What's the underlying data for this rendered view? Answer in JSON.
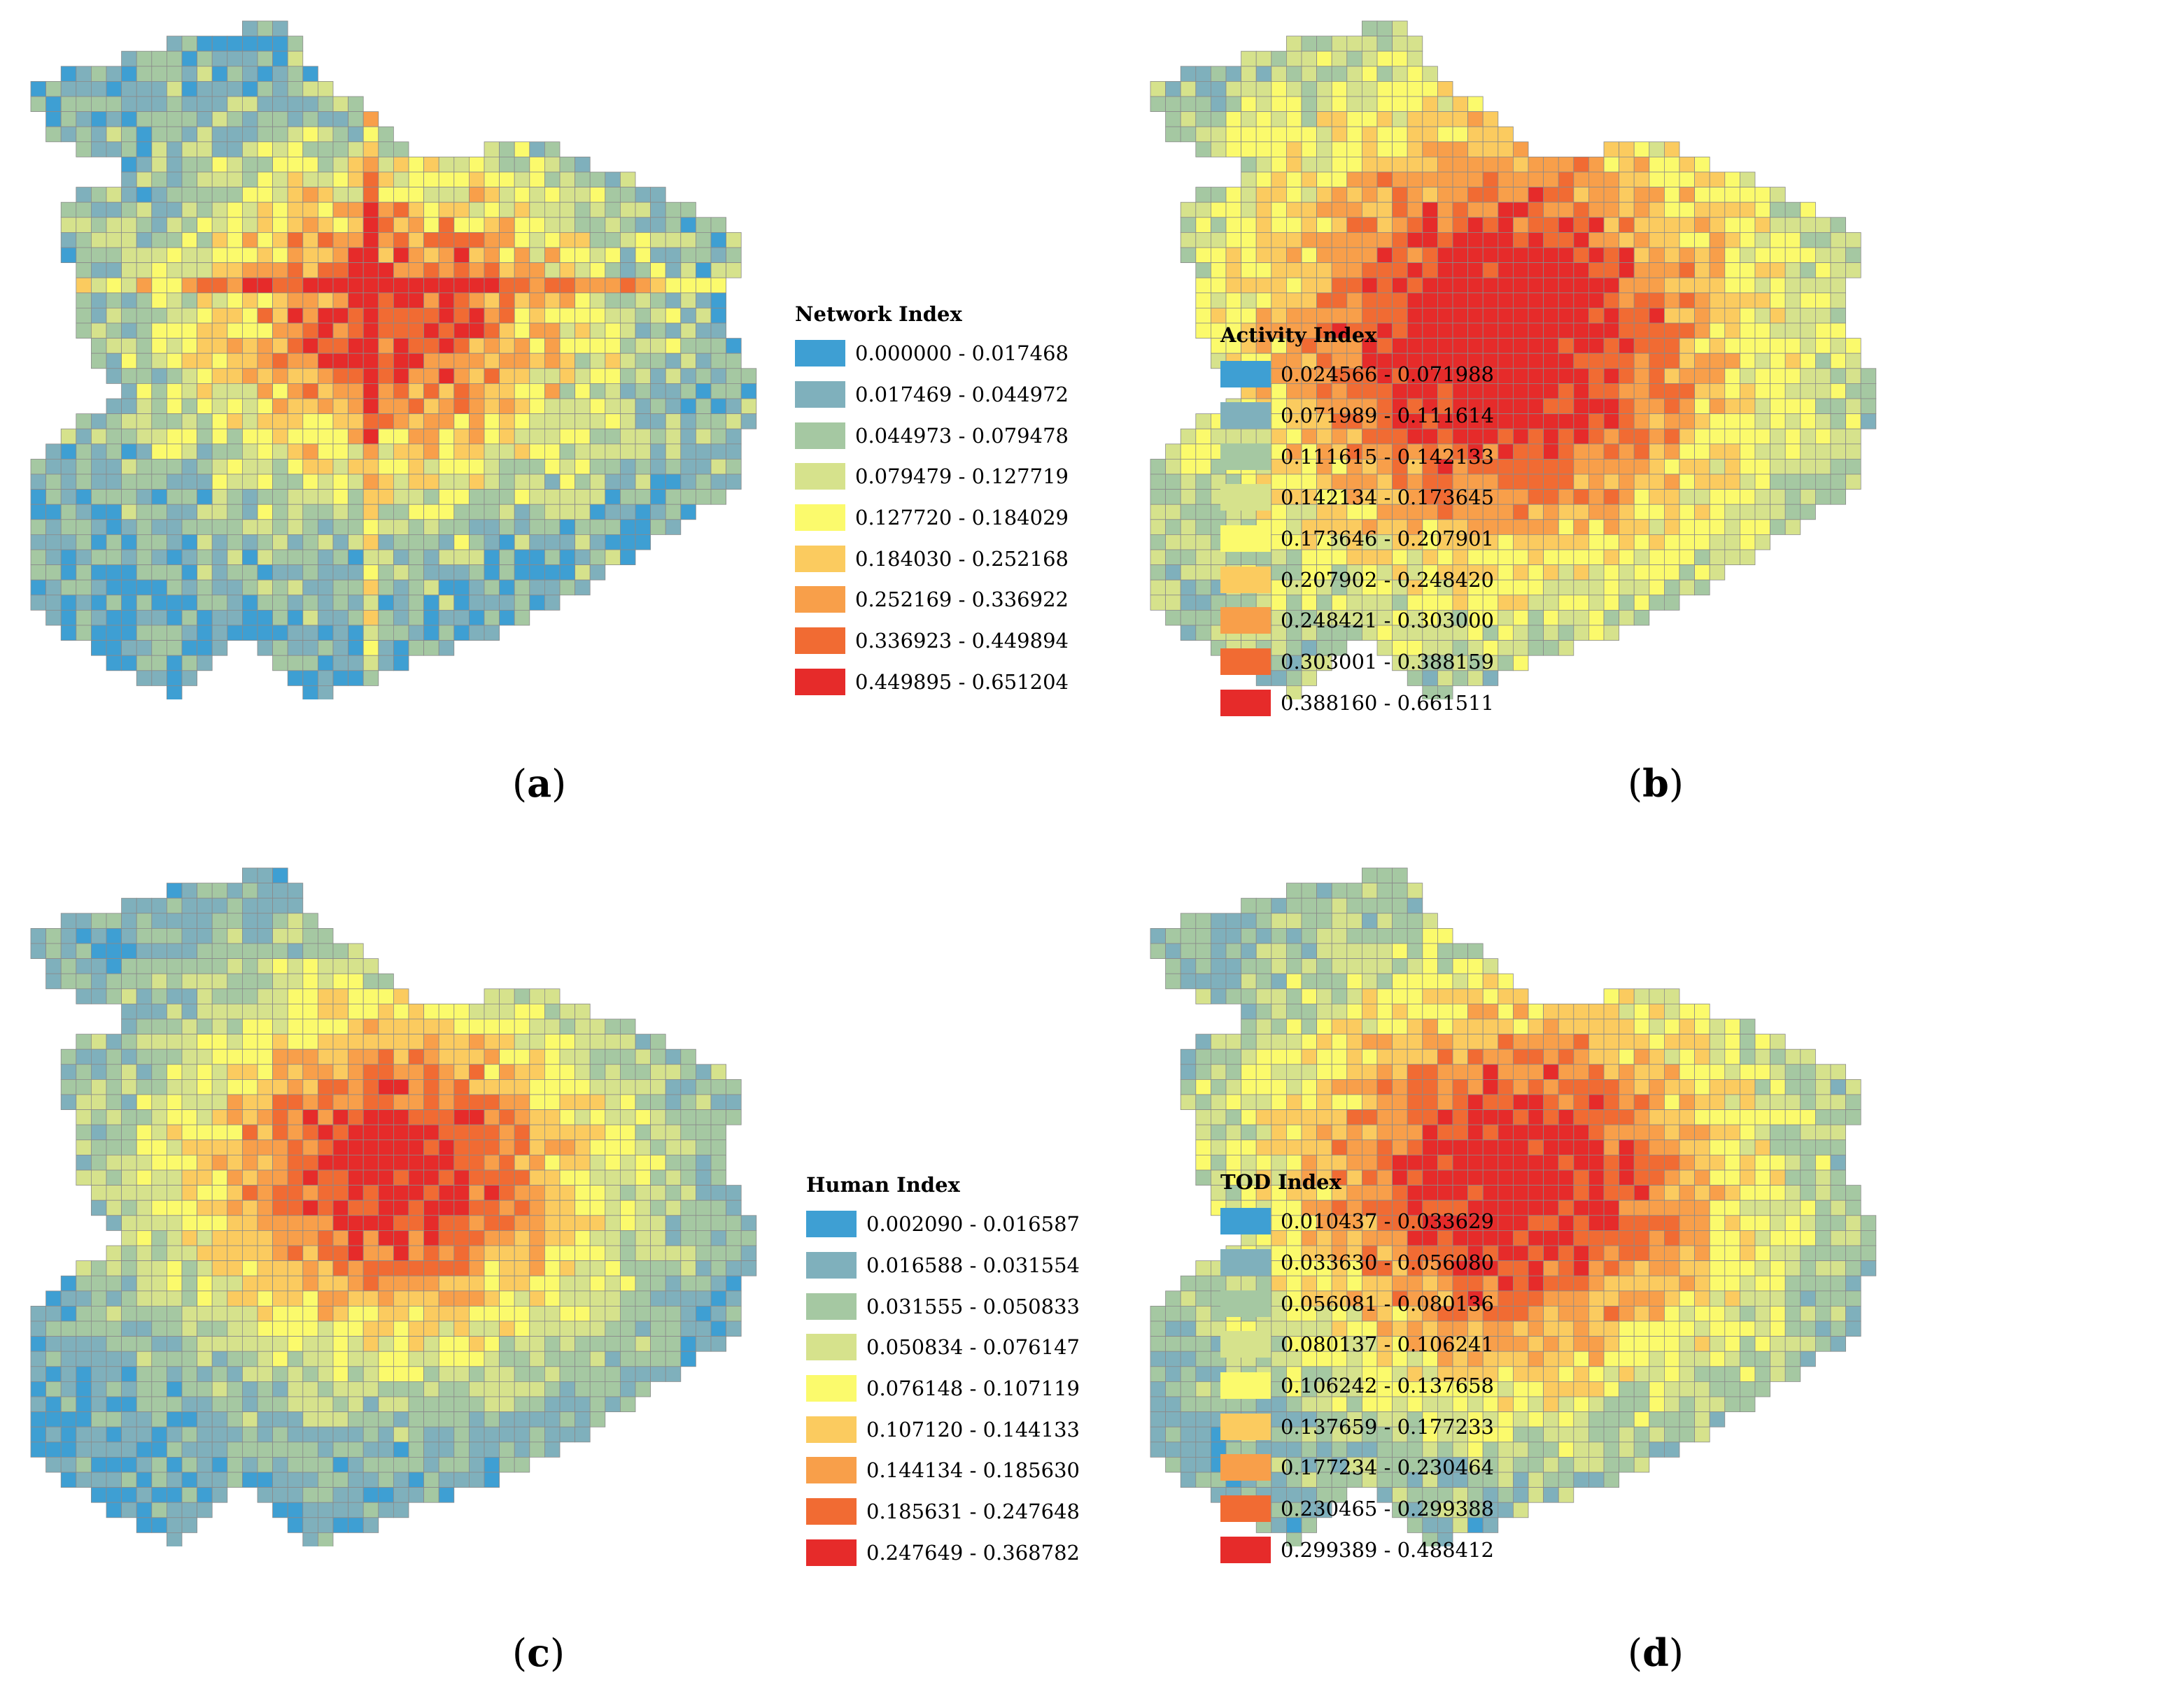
{
  "class_colors": [
    "#3e9fd3",
    "#7fb0bc",
    "#a5c8a2",
    "#d6e28c",
    "#fbfa6c",
    "#fbcb5f",
    "#f89f4a",
    "#f16b33",
    "#e62b2a"
  ],
  "panels": [
    {
      "caption_open": "(",
      "caption_letter": "a",
      "caption_close": ")",
      "legend_title": "Network Index",
      "classes": [
        "0.000000 - 0.017468",
        "0.017469 - 0.044972",
        "0.044973 - 0.079478",
        "0.079479 - 0.127719",
        "0.127720 - 0.184029",
        "0.184030 - 0.252168",
        "0.252169 - 0.336922",
        "0.336923 - 0.449894",
        "0.449895 - 0.651204"
      ]
    },
    {
      "caption_open": "(",
      "caption_letter": "b",
      "caption_close": ")",
      "legend_title": "Activity Index",
      "classes": [
        "0.024566 - 0.071988",
        "0.071989 - 0.111614",
        "0.111615 - 0.142133",
        "0.142134 - 0.173645",
        "0.173646 - 0.207901",
        "0.207902 - 0.248420",
        "0.248421 - 0.303000",
        "0.303001 - 0.388159",
        "0.388160 - 0.661511"
      ]
    },
    {
      "caption_open": "(",
      "caption_letter": "c",
      "caption_close": ")",
      "legend_title": "Human Index",
      "classes": [
        "0.002090 - 0.016587",
        "0.016588 - 0.031554",
        "0.031555 - 0.050833",
        "0.050834 - 0.076147",
        "0.076148 - 0.107119",
        "0.107120 - 0.144133",
        "0.144134 - 0.185630",
        "0.185631 - 0.247648",
        "0.247649 - 0.368782"
      ]
    },
    {
      "caption_open": "(",
      "caption_letter": "d",
      "caption_close": ")",
      "legend_title": "TOD Index",
      "classes": [
        "0.010437 - 0.033629",
        "0.033630 - 0.056080",
        "0.056081 - 0.080136",
        "0.080137 - 0.106241",
        "0.106242 - 0.137658",
        "0.137659 - 0.177233",
        "0.177234 - 0.230464",
        "0.230465 - 0.299388",
        "0.299389 - 0.488412"
      ]
    }
  ]
}
